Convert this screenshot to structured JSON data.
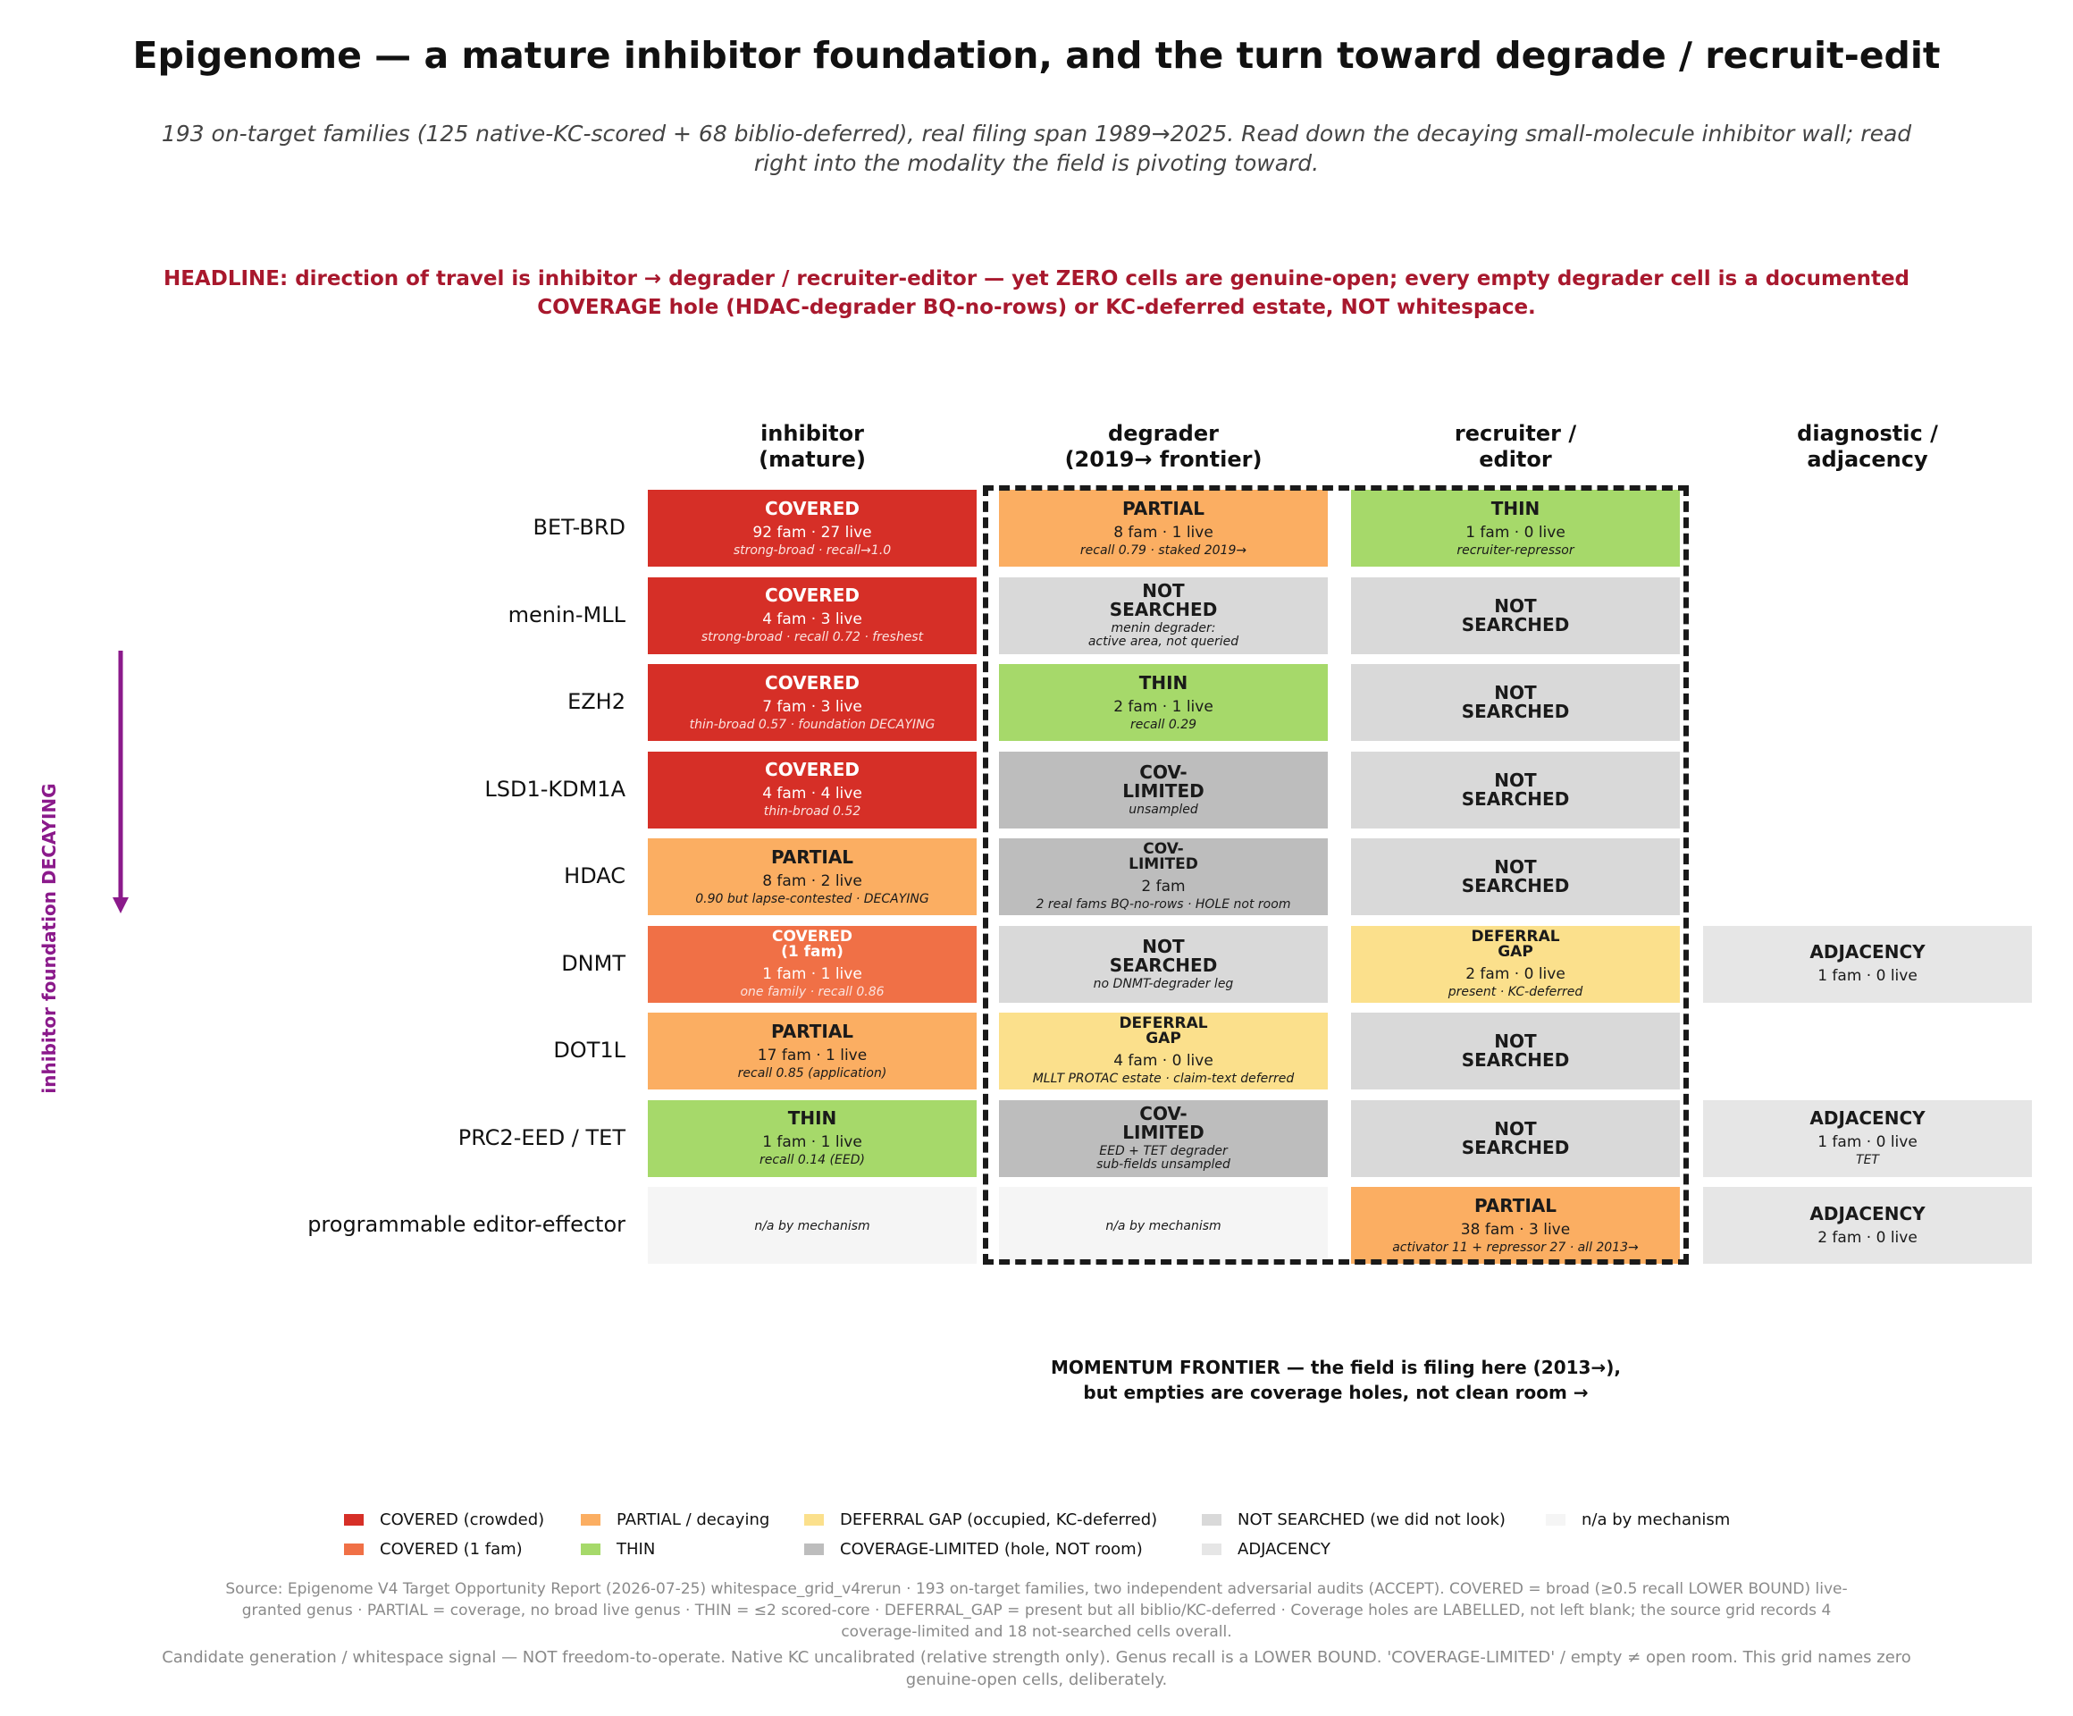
{
  "title": "Epigenome — a mature inhibitor foundation, and the turn toward degrade / recruit-edit",
  "subtitle_lines": [
    "193 on-target families (125 native-KC-scored + 68 biblio-deferred), real filing span 1989→2025.  Read down the decaying small-molecule inhibitor wall; read",
    "right into the modality the field is pivoting toward."
  ],
  "headline_lines": [
    "HEADLINE: direction of travel is inhibitor → degrader / recruiter-editor — yet ZERO cells are genuine-open; every empty degrader cell is a documented",
    "COVERAGE hole (HDAC-degrader BQ-no-rows) or KC-deferred estate, NOT whitespace."
  ],
  "side_label": "inhibitor foundation DECAYING",
  "momentum_lines": [
    "MOMENTUM FRONTIER — the field is filing here (2013→),",
    "but empties are coverage holes, not clean room →"
  ],
  "colors": {
    "covered": "#d62f27",
    "covered_one": "#f07046",
    "partial": "#fbae62",
    "thin": "#a6d96a",
    "deferral_gap": "#fbe08c",
    "coverage_limited": "#bdbdbd",
    "not_searched": "#d9d9d9",
    "na": "#f5f5f5",
    "adjacency": "#e6e6e6",
    "headline": "#a8182d",
    "arrow": "#8b1a8b"
  },
  "chart_data": {
    "type": "table",
    "columns": [
      {
        "key": "inhibitor",
        "label_lines": [
          "inhibitor",
          "(mature)"
        ]
      },
      {
        "key": "degrader",
        "label_lines": [
          "degrader",
          "(2019→ frontier)"
        ]
      },
      {
        "key": "recruiter",
        "label_lines": [
          "recruiter /",
          "editor"
        ]
      },
      {
        "key": "diagnostic",
        "label_lines": [
          "diagnostic /",
          "adjacency"
        ]
      }
    ],
    "rows": [
      {
        "label": "BET-BRD",
        "cells": [
          {
            "status": "covered",
            "status_lines": [
              "COVERED"
            ],
            "counts": "92 fam  ·  27 live",
            "note_lines": [
              "strong-broad · recall→1.0"
            ]
          },
          {
            "status": "partial",
            "status_lines": [
              "PARTIAL"
            ],
            "counts": "8 fam  ·  1 live",
            "note_lines": [
              "recall 0.79 · staked 2019→"
            ]
          },
          {
            "status": "thin",
            "status_lines": [
              "THIN"
            ],
            "counts": "1 fam  ·  0 live",
            "note_lines": [
              "recruiter-repressor"
            ]
          },
          null
        ]
      },
      {
        "label": "menin-MLL",
        "cells": [
          {
            "status": "covered",
            "status_lines": [
              "COVERED"
            ],
            "counts": "4 fam  ·  3 live",
            "note_lines": [
              "strong-broad · recall 0.72 · freshest"
            ]
          },
          {
            "status": "not_searched",
            "status_lines": [
              "NOT",
              "SEARCHED"
            ],
            "counts": "",
            "note_lines": [
              "menin degrader:",
              "active area, not queried"
            ]
          },
          {
            "status": "not_searched",
            "status_lines": [
              "NOT",
              "SEARCHED"
            ],
            "counts": "",
            "note_lines": []
          },
          null
        ]
      },
      {
        "label": "EZH2",
        "cells": [
          {
            "status": "covered",
            "status_lines": [
              "COVERED"
            ],
            "counts": "7 fam  ·  3 live",
            "note_lines": [
              "thin-broad 0.57 · foundation DECAYING"
            ]
          },
          {
            "status": "thin",
            "status_lines": [
              "THIN"
            ],
            "counts": "2 fam  ·  1 live",
            "note_lines": [
              "recall 0.29"
            ]
          },
          {
            "status": "not_searched",
            "status_lines": [
              "NOT",
              "SEARCHED"
            ],
            "counts": "",
            "note_lines": []
          },
          null
        ]
      },
      {
        "label": "LSD1-KDM1A",
        "cells": [
          {
            "status": "covered",
            "status_lines": [
              "COVERED"
            ],
            "counts": "4 fam  ·  4 live",
            "note_lines": [
              "thin-broad 0.52"
            ]
          },
          {
            "status": "coverage_limited",
            "status_lines": [
              "COV-",
              "LIMITED"
            ],
            "counts": "",
            "note_lines": [
              "unsampled"
            ]
          },
          {
            "status": "not_searched",
            "status_lines": [
              "NOT",
              "SEARCHED"
            ],
            "counts": "",
            "note_lines": []
          },
          null
        ]
      },
      {
        "label": "HDAC",
        "cells": [
          {
            "status": "partial",
            "status_lines": [
              "PARTIAL"
            ],
            "counts": "8 fam  ·  2 live",
            "note_lines": [
              "0.90 but lapse-contested · DECAYING"
            ]
          },
          {
            "status": "coverage_limited",
            "status_lines": [
              "COV-",
              "LIMITED"
            ],
            "small": true,
            "counts": "2 fam",
            "note_lines": [
              "2 real fams BQ-no-rows · HOLE not room"
            ]
          },
          {
            "status": "not_searched",
            "status_lines": [
              "NOT",
              "SEARCHED"
            ],
            "counts": "",
            "note_lines": []
          },
          null
        ]
      },
      {
        "label": "DNMT",
        "cells": [
          {
            "status": "covered_one",
            "status_lines": [
              "COVERED",
              "(1 fam)"
            ],
            "small": true,
            "counts": "1 fam  ·  1 live",
            "note_lines": [
              "one family · recall 0.86"
            ]
          },
          {
            "status": "not_searched",
            "status_lines": [
              "NOT",
              "SEARCHED"
            ],
            "counts": "",
            "note_lines": [
              "no DNMT-degrader leg"
            ]
          },
          {
            "status": "deferral_gap",
            "status_lines": [
              "DEFERRAL",
              "GAP"
            ],
            "small": true,
            "counts": "2 fam  ·  0 live",
            "note_lines": [
              "present · KC-deferred"
            ]
          },
          {
            "status": "adjacency",
            "status_lines": [
              "ADJACENCY"
            ],
            "counts": "1 fam  ·  0 live",
            "note_lines": []
          }
        ]
      },
      {
        "label": "DOT1L",
        "cells": [
          {
            "status": "partial",
            "status_lines": [
              "PARTIAL"
            ],
            "counts": "17 fam  ·  1 live",
            "note_lines": [
              "recall 0.85 (application)"
            ]
          },
          {
            "status": "deferral_gap",
            "status_lines": [
              "DEFERRAL",
              "GAP"
            ],
            "small": true,
            "counts": "4 fam  ·  0 live",
            "note_lines": [
              "MLLT PROTAC estate · claim-text deferred"
            ]
          },
          {
            "status": "not_searched",
            "status_lines": [
              "NOT",
              "SEARCHED"
            ],
            "counts": "",
            "note_lines": []
          },
          null
        ]
      },
      {
        "label": "PRC2-EED / TET",
        "cells": [
          {
            "status": "thin",
            "status_lines": [
              "THIN"
            ],
            "counts": "1 fam  ·  1 live",
            "note_lines": [
              "recall 0.14 (EED)"
            ]
          },
          {
            "status": "coverage_limited",
            "status_lines": [
              "COV-",
              "LIMITED"
            ],
            "counts": "",
            "note_lines": [
              "EED + TET degrader",
              "sub-fields unsampled"
            ]
          },
          {
            "status": "not_searched",
            "status_lines": [
              "NOT",
              "SEARCHED"
            ],
            "counts": "",
            "note_lines": []
          },
          {
            "status": "adjacency",
            "status_lines": [
              "ADJACENCY"
            ],
            "counts": "1 fam  ·  0 live",
            "note_lines": [
              "TET"
            ]
          }
        ]
      },
      {
        "label": "programmable editor-effector",
        "cells": [
          {
            "status": "na",
            "status_lines": [],
            "counts": "",
            "note_lines": [
              "n/a by mechanism"
            ]
          },
          {
            "status": "na",
            "status_lines": [],
            "counts": "",
            "note_lines": [
              "n/a by mechanism"
            ]
          },
          {
            "status": "partial",
            "status_lines": [
              "PARTIAL"
            ],
            "counts": "38 fam  ·  3 live",
            "note_lines": [
              "activator 11 + repressor 27 · all 2013→"
            ]
          },
          {
            "status": "adjacency",
            "status_lines": [
              "ADJACENCY"
            ],
            "counts": "2 fam  ·  0 live",
            "note_lines": []
          }
        ]
      }
    ],
    "legend": [
      {
        "key": "covered",
        "label": "COVERED (crowded)"
      },
      {
        "key": "covered_one",
        "label": "COVERED (1 fam)"
      },
      {
        "key": "partial",
        "label": "PARTIAL / decaying"
      },
      {
        "key": "thin",
        "label": "THIN"
      },
      {
        "key": "deferral_gap",
        "label": "DEFERRAL GAP (occupied, KC-deferred)"
      },
      {
        "key": "coverage_limited",
        "label": "COVERAGE-LIMITED (hole, NOT room)"
      },
      {
        "key": "not_searched",
        "label": "NOT SEARCHED (we did not look)"
      },
      {
        "key": "adjacency",
        "label": "ADJACENCY"
      },
      {
        "key": "na",
        "label": "n/a by mechanism"
      }
    ]
  },
  "source_lines": [
    "Source: Epigenome V4 Target Opportunity Report (2026-07-25) whitespace_grid_v4rerun · 193 on-target families, two independent adversarial audits (ACCEPT).  COVERED = broad (≥0.5 recall LOWER BOUND) live-",
    "granted genus · PARTIAL = coverage, no broad live genus · THIN = ≤2 scored-core · DEFERRAL_GAP = present but all biblio/KC-deferred · Coverage holes are LABELLED, not left blank; the source grid records 4",
    "coverage-limited and 18 not-searched cells overall."
  ],
  "disclaimer_lines": [
    "Candidate generation / whitespace signal — NOT freedom-to-operate. Native KC uncalibrated (relative strength only). Genus recall is a LOWER BOUND. 'COVERAGE-LIMITED' / empty ≠ open room. This grid names zero",
    "genuine-open cells, deliberately."
  ]
}
